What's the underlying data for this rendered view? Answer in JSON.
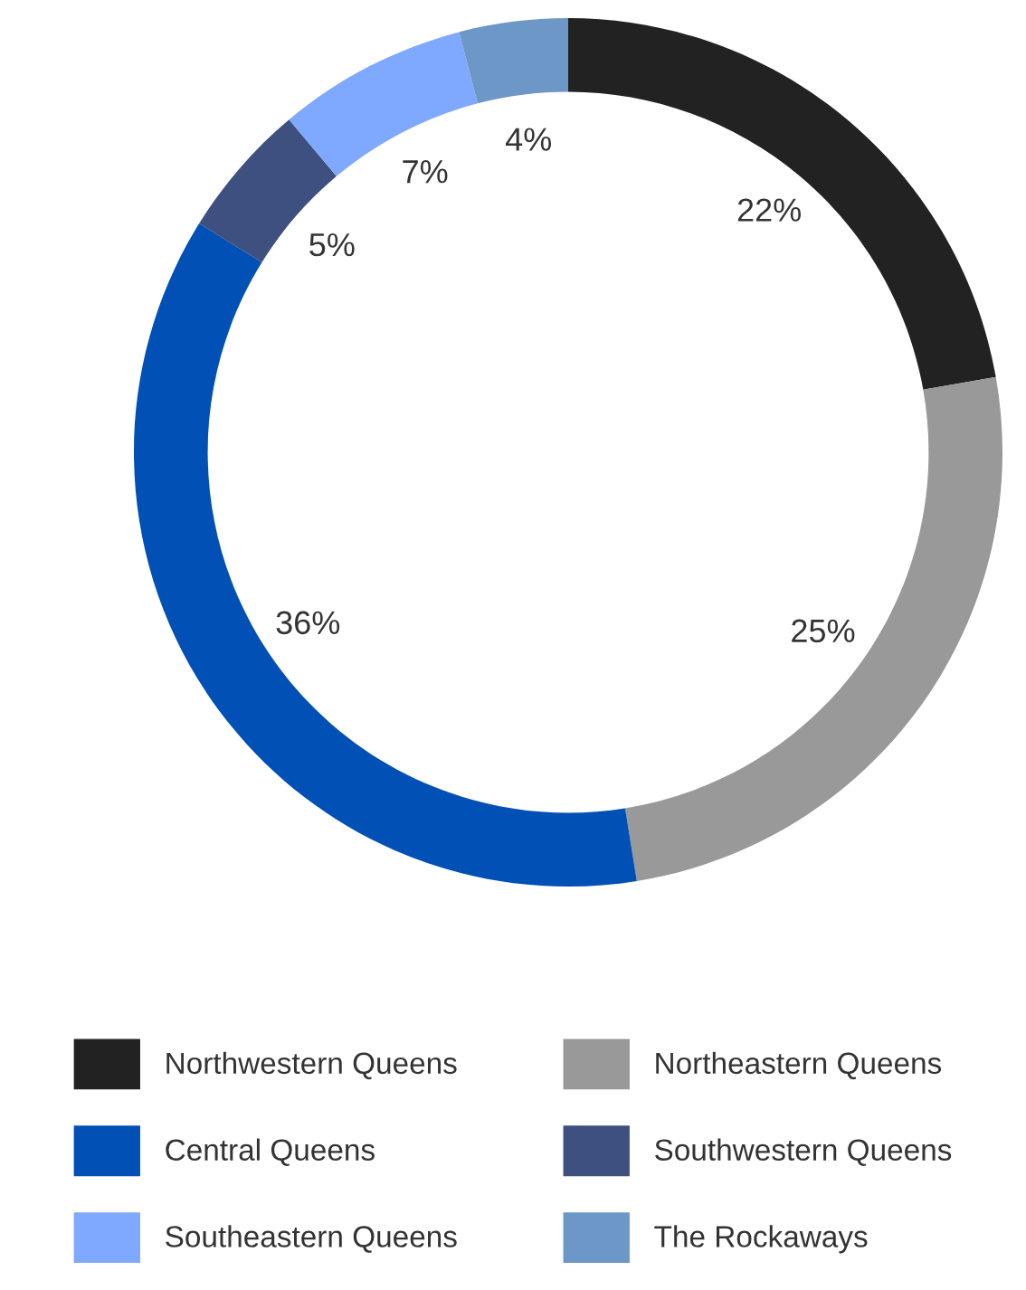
{
  "chart_data": {
    "type": "donut",
    "categories": [
      "Northwestern Queens",
      "Northeastern Queens",
      "Central Queens",
      "Southwestern Queens",
      "Southeastern Queens",
      "The Rockaways"
    ],
    "values": [
      22,
      25,
      36,
      5,
      7,
      4
    ],
    "colors": [
      "#222222",
      "#999999",
      "#0050b5",
      "#3d5080",
      "#7fa8ff",
      "#6c97c6"
    ],
    "value_labels": [
      "22%",
      "25%",
      "36%",
      "5%",
      "7%",
      "4%"
    ],
    "legend": "bottom"
  }
}
